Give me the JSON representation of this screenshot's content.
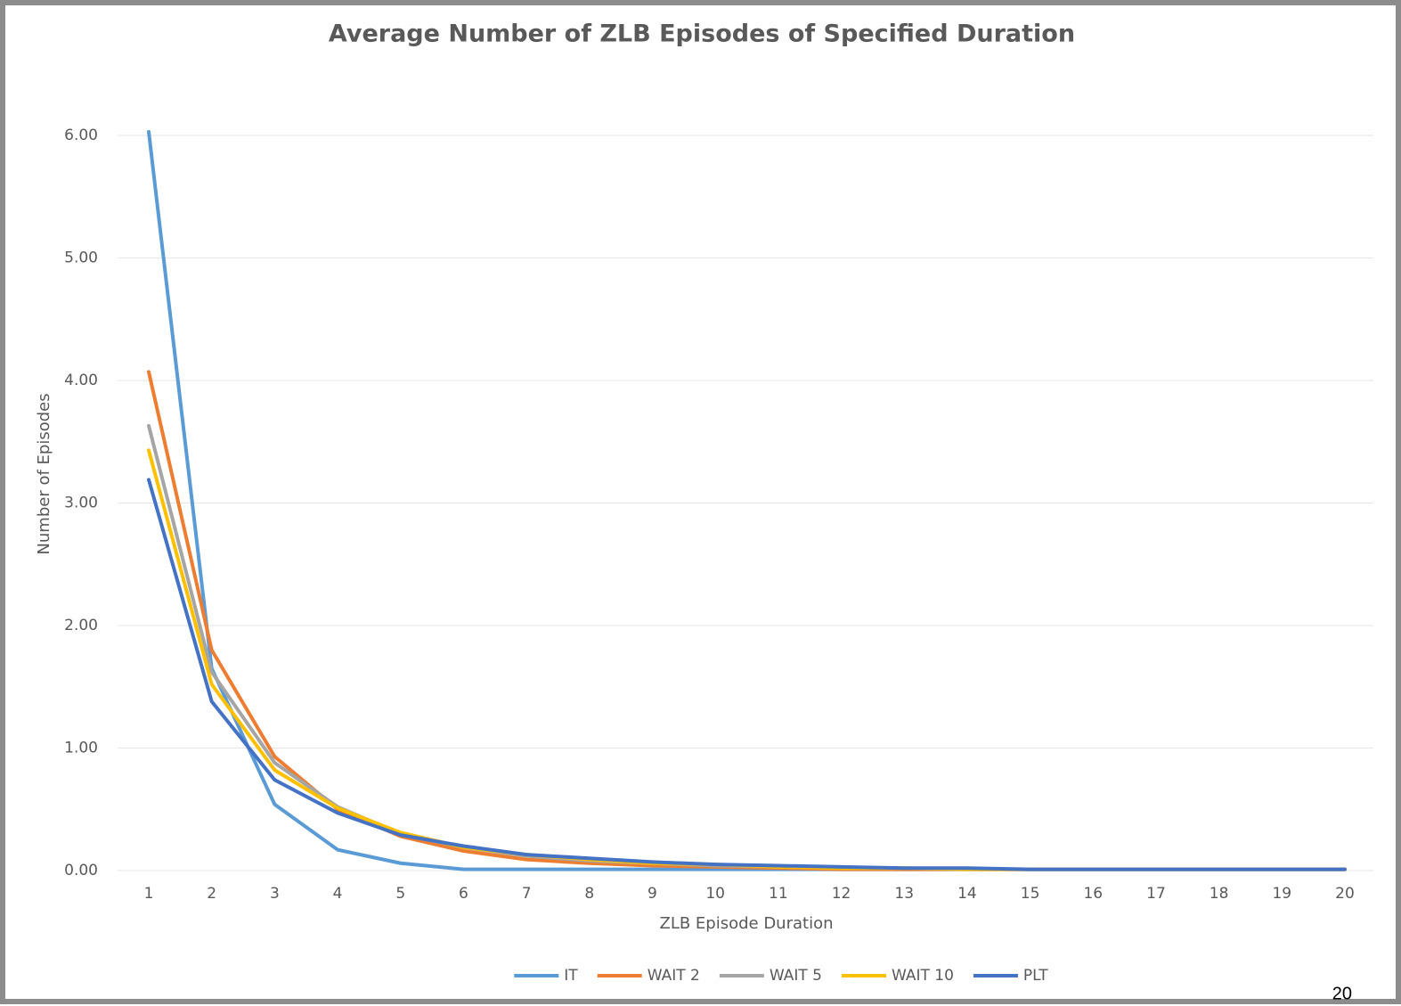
{
  "chart_data": {
    "type": "line",
    "title": "Average Number of ZLB Episodes of Specified Duration",
    "x_label": "ZLB Episode Duration",
    "y_label": "Number of Episodes",
    "categories": [
      "1",
      "2",
      "3",
      "4",
      "5",
      "6",
      "7",
      "8",
      "9",
      "10",
      "11",
      "12",
      "13",
      "14",
      "15",
      "16",
      "17",
      "18",
      "19",
      "20"
    ],
    "series": [
      {
        "name": "IT",
        "color": "#5b9bd5",
        "values": [
          6.03,
          1.65,
          0.54,
          0.17,
          0.06,
          0.01,
          0.01,
          0.01,
          0.01,
          0.01,
          0.01,
          0.01,
          0.01,
          0.01,
          0.01,
          0.01,
          0.01,
          0.01,
          0.01,
          0.01
        ]
      },
      {
        "name": "WAIT 2",
        "color": "#ed7d31",
        "values": [
          4.07,
          1.8,
          0.93,
          0.5,
          0.28,
          0.16,
          0.09,
          0.06,
          0.04,
          0.03,
          0.02,
          0.01,
          0.01,
          0.01,
          0.01,
          0.01,
          0.01,
          0.01,
          0.01,
          0.01
        ]
      },
      {
        "name": "WAIT 5",
        "color": "#a5a5a5",
        "values": [
          3.63,
          1.62,
          0.88,
          0.52,
          0.3,
          0.19,
          0.12,
          0.08,
          0.06,
          0.04,
          0.03,
          0.02,
          0.02,
          0.01,
          0.01,
          0.01,
          0.01,
          0.01,
          0.01,
          0.01
        ]
      },
      {
        "name": "WAIT 10",
        "color": "#ffc000",
        "values": [
          3.43,
          1.52,
          0.82,
          0.51,
          0.31,
          0.19,
          0.13,
          0.09,
          0.06,
          0.05,
          0.03,
          0.02,
          0.02,
          0.01,
          0.01,
          0.01,
          0.01,
          0.01,
          0.01,
          0.01
        ]
      },
      {
        "name": "PLT",
        "color": "#4472c4",
        "values": [
          3.19,
          1.38,
          0.74,
          0.47,
          0.29,
          0.2,
          0.13,
          0.1,
          0.07,
          0.05,
          0.04,
          0.03,
          0.02,
          0.02,
          0.01,
          0.01,
          0.01,
          0.01,
          0.01,
          0.01
        ]
      }
    ],
    "ylim": [
      0,
      6
    ],
    "yticks": [
      {
        "value": 0,
        "label": "0.00"
      },
      {
        "value": 1,
        "label": "1.00"
      },
      {
        "value": 2,
        "label": "2.00"
      },
      {
        "value": 3,
        "label": "3.00"
      },
      {
        "value": 4,
        "label": "4.00"
      },
      {
        "value": 5,
        "label": "5.00"
      },
      {
        "value": 6,
        "label": "6.00"
      }
    ],
    "grid": true,
    "legend": "bottom"
  },
  "page_number": "20"
}
